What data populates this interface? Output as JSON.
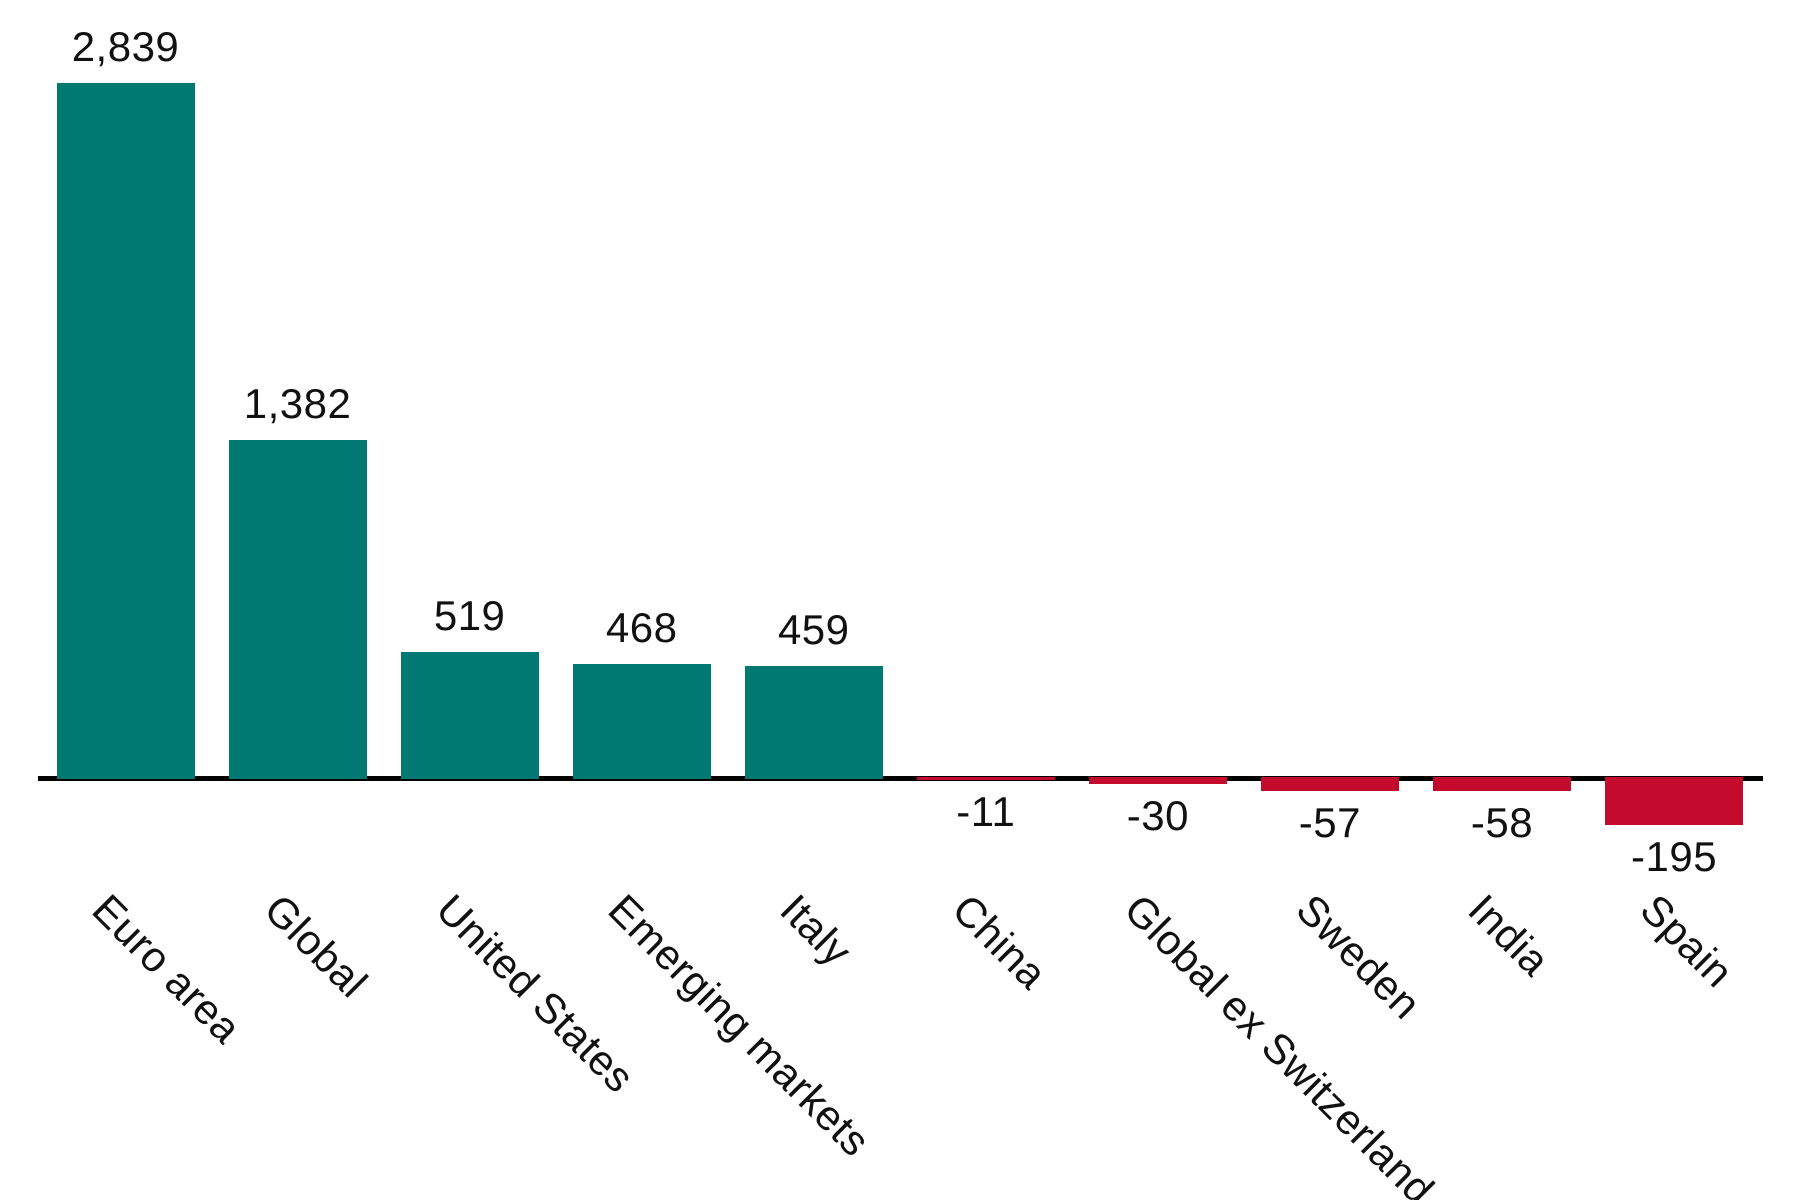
{
  "chart_data": {
    "type": "bar",
    "categories": [
      "Euro area",
      "Global",
      "United States",
      "Emerging markets",
      "Italy",
      "China",
      "Global ex Switzerland",
      "Sweden",
      "India",
      "Spain"
    ],
    "values": [
      2839,
      1382,
      519,
      468,
      459,
      -11,
      -30,
      -57,
      -58,
      -195
    ],
    "value_labels": [
      "2,839",
      "1,382",
      "519",
      "468",
      "459",
      "-11",
      "-30",
      "-57",
      "-58",
      "-195"
    ],
    "title": "",
    "xlabel": "",
    "ylabel": "",
    "ylim": [
      -300,
      3000
    ],
    "grid": false,
    "legend": false,
    "category_label_rotation_deg": 45,
    "colors": {
      "positive_bar": "#007973",
      "negative_bar": "#C40B2E",
      "axis_line": "#000000",
      "label_text": "#111111",
      "background": "#FFFFFF"
    }
  }
}
